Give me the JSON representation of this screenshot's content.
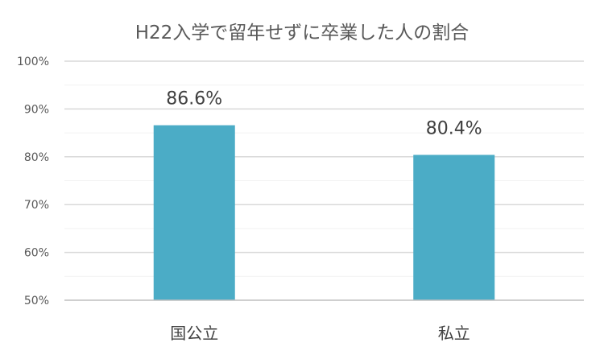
{
  "chart_data": {
    "type": "bar",
    "title": "H22入学で留年せずに卒業した人の割合",
    "categories": [
      "国公立",
      "私立"
    ],
    "values": [
      86.6,
      80.4
    ],
    "data_labels": [
      "86.6%",
      "80.4%"
    ],
    "ylim": [
      50,
      100
    ],
    "y_ticks": [
      {
        "value": 100,
        "label": "100%"
      },
      {
        "value": 90,
        "label": "90%"
      },
      {
        "value": 80,
        "label": "80%"
      },
      {
        "value": 70,
        "label": "70%"
      },
      {
        "value": 60,
        "label": "60%"
      },
      {
        "value": 50,
        "label": "50%"
      }
    ],
    "minor_grid_step": 5,
    "grid": true,
    "legend": "none",
    "bar_color": "#4bacc6",
    "grid_color": "#d9d9d9",
    "minor_grid_color": "#f2f2f2",
    "axis_color": "#bfbfbf"
  }
}
